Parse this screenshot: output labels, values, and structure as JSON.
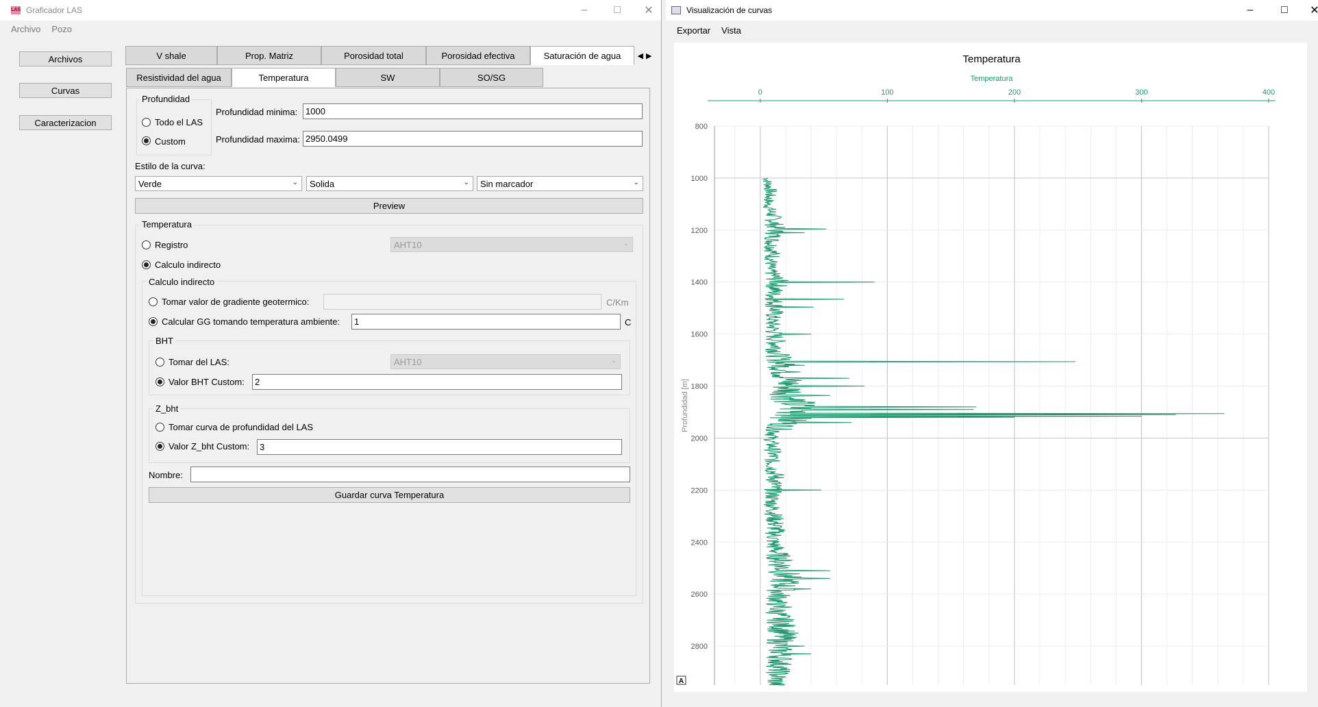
{
  "left_window": {
    "title": "Graficador LAS",
    "icon_text": "LAS",
    "menu": [
      "Archivo",
      "Pozo"
    ],
    "side_buttons": [
      "Archivos",
      "Curvas",
      "Caracterizacion"
    ],
    "tabs_row1": [
      "V shale",
      "Prop. Matriz",
      "Porosidad total",
      "Porosidad efectiva",
      "Saturación de agua"
    ],
    "tabs_row2": [
      "Resistividad del agua",
      "Temperatura",
      "SW",
      "SO/SG"
    ],
    "active_tab_row1": "Saturación de agua",
    "active_tab_row2": "Temperatura",
    "profundidad": {
      "group_title": "Profundidad",
      "option_all": "Todo el LAS",
      "option_custom": "Custom",
      "min_label": "Profundidad minima:",
      "min_value": "1000",
      "max_label": "Profundidad maxima:",
      "max_value": "2950.0499"
    },
    "estilo": {
      "label": "Estilo de la curva:",
      "color": "Verde",
      "linea": "Solida",
      "marcador": "Sin marcador",
      "preview_button": "Preview"
    },
    "temperatura": {
      "group_title": "Temperatura",
      "registro_label": "Registro",
      "registro_combo": "AHT10",
      "calculo_label": "Calculo indirecto",
      "calculo_group_title": "Calculo indirecto",
      "gradiente_label": "Tomar valor de gradiente geotermico:",
      "gradiente_value": "",
      "gradiente_unit": "C/Km",
      "gg_label": "Calcular GG tomando temperatura ambiente:",
      "gg_value": "1",
      "gg_unit": "C",
      "bht_title": "BHT",
      "bht_las_label": "Tomar del LAS:",
      "bht_las_combo": "AHT10",
      "bht_custom_label": "Valor BHT Custom:",
      "bht_custom_value": "2",
      "zbht_title": "Z_bht",
      "zbht_las_label": "Tomar curva de profundidad del LAS",
      "zbht_custom_label": "Valor Z_bht Custom:",
      "zbht_custom_value": "3",
      "nombre_label": "Nombre:",
      "nombre_value": "",
      "save_button": "Guardar curva Temperatura"
    }
  },
  "right_window": {
    "title": "Visualización de curvas",
    "menu": [
      "Exportar",
      "Vista"
    ],
    "autoscale_icon": "A"
  },
  "chart_data": {
    "type": "line",
    "title": "Temperatura",
    "series": [
      {
        "name": "Temperatura",
        "color": "#1a9a6a"
      }
    ],
    "xlabel": "Temperatura",
    "ylabel": "Profundidad [m]",
    "xlim": [
      -36,
      400
    ],
    "ylim": [
      2950,
      800
    ],
    "x_ticks": [
      "0",
      "100",
      "200",
      "300",
      "400"
    ],
    "y_ticks": [
      "800",
      "1000",
      "1200",
      "1400",
      "1600",
      "1800",
      "2000",
      "2200",
      "2400",
      "2600",
      "2800"
    ],
    "grid": true,
    "base_trace": [
      [
        1000,
        5
      ],
      [
        1050,
        8
      ],
      [
        1100,
        6
      ],
      [
        1150,
        10
      ],
      [
        1200,
        12
      ],
      [
        1250,
        9
      ],
      [
        1300,
        10
      ],
      [
        1350,
        7
      ],
      [
        1400,
        14
      ],
      [
        1450,
        10
      ],
      [
        1500,
        12
      ],
      [
        1550,
        9
      ],
      [
        1600,
        11
      ],
      [
        1650,
        13
      ],
      [
        1700,
        15
      ],
      [
        1750,
        20
      ],
      [
        1800,
        22
      ],
      [
        1850,
        25
      ],
      [
        1900,
        30
      ],
      [
        1950,
        18
      ],
      [
        2000,
        8
      ],
      [
        2050,
        10
      ],
      [
        2100,
        9
      ],
      [
        2150,
        12
      ],
      [
        2200,
        10
      ],
      [
        2250,
        9
      ],
      [
        2300,
        11
      ],
      [
        2350,
        12
      ],
      [
        2400,
        10
      ],
      [
        2450,
        14
      ],
      [
        2500,
        18
      ],
      [
        2550,
        20
      ],
      [
        2600,
        15
      ],
      [
        2650,
        12
      ],
      [
        2700,
        16
      ],
      [
        2750,
        18
      ],
      [
        2800,
        15
      ],
      [
        2850,
        16
      ],
      [
        2900,
        14
      ],
      [
        2950,
        12
      ]
    ],
    "spikes": [
      [
        1195,
        52
      ],
      [
        1210,
        35
      ],
      [
        1400,
        90
      ],
      [
        1465,
        66
      ],
      [
        1495,
        42
      ],
      [
        1600,
        40
      ],
      [
        1705,
        248
      ],
      [
        1720,
        35
      ],
      [
        1770,
        70
      ],
      [
        1800,
        82
      ],
      [
        1835,
        55
      ],
      [
        1880,
        170
      ],
      [
        1890,
        168
      ],
      [
        1905,
        365
      ],
      [
        1910,
        327
      ],
      [
        1915,
        300
      ],
      [
        1920,
        200
      ],
      [
        1940,
        72
      ],
      [
        2200,
        48
      ],
      [
        2510,
        55
      ],
      [
        2540,
        55
      ],
      [
        2580,
        40
      ],
      [
        2650,
        25
      ],
      [
        2800,
        35
      ],
      [
        2830,
        40
      ]
    ]
  }
}
